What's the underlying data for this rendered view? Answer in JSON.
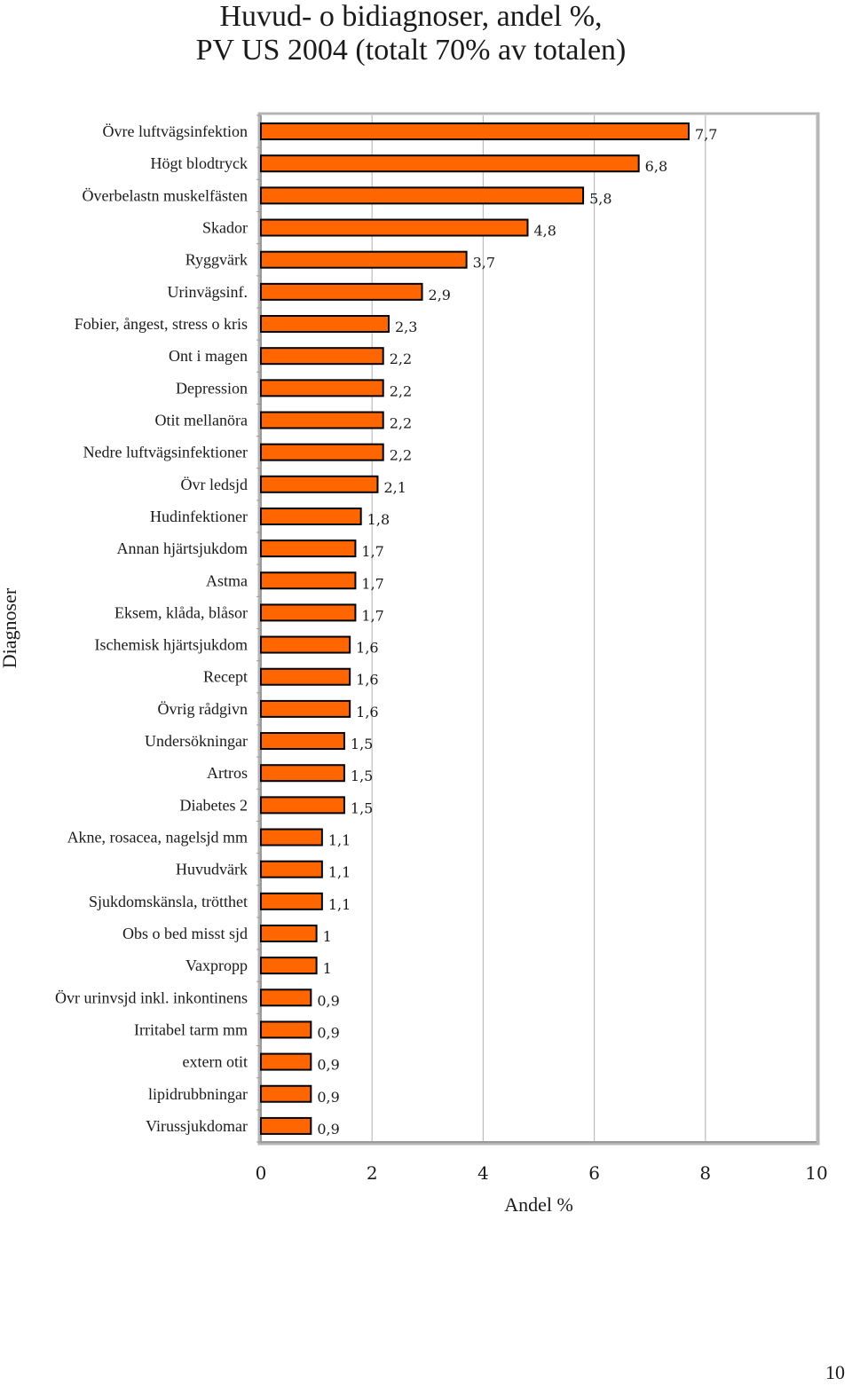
{
  "title_line1": "Huvud- o bidiagnoser, andel %,",
  "title_line2": "PV US 2004 (totalt 70% av totalen)",
  "page_number": "10",
  "chart_data": {
    "type": "bar",
    "orientation": "horizontal",
    "xlabel": "Andel %",
    "ylabel": "Diagnoser",
    "xlim": [
      0,
      10
    ],
    "xticks": [
      "0",
      "2",
      "4",
      "6",
      "8",
      "10"
    ],
    "grid": "vertical",
    "bar_color": "#ff6600",
    "bar_border_color": "#000000",
    "categories": [
      "Övre luftvägsinfektion",
      "Högt blodtryck",
      "Överbelastn muskelfästen",
      "Skador",
      "Ryggvärk",
      "Urinvägsinf.",
      "Fobier, ångest, stress o kris",
      "Ont i magen",
      "Depression",
      "Otit mellanöra",
      "Nedre luftvägsinfektioner",
      "Övr ledsjd",
      "Hudinfektioner",
      "Annan hjärtsjukdom",
      "Astma",
      "Eksem, klåda, blåsor",
      "Ischemisk hjärtsjukdom",
      "Recept",
      "Övrig rådgivn",
      "Undersökningar",
      "Artros",
      "Diabetes 2",
      "Akne, rosacea, nagelsjd mm",
      "Huvudvärk",
      "Sjukdomskänsla, trötthet",
      "Obs o bed misst sjd",
      "Vaxpropp",
      "Övr urinvsjd inkl. inkontinens",
      "Irritabel tarm mm",
      "extern otit",
      "lipidrubbningar",
      "Virussjukdomar"
    ],
    "values": [
      7.7,
      6.8,
      5.8,
      4.8,
      3.7,
      2.9,
      2.3,
      2.2,
      2.2,
      2.2,
      2.2,
      2.1,
      1.8,
      1.7,
      1.7,
      1.7,
      1.6,
      1.6,
      1.6,
      1.5,
      1.5,
      1.5,
      1.1,
      1.1,
      1.1,
      1,
      1,
      0.9,
      0.9,
      0.9,
      0.9,
      0.9
    ],
    "value_labels": [
      "7,7",
      "6,8",
      "5,8",
      "4,8",
      "3,7",
      "2,9",
      "2,3",
      "2,2",
      "2,2",
      "2,2",
      "2,2",
      "2,1",
      "1,8",
      "1,7",
      "1,7",
      "1,7",
      "1,6",
      "1,6",
      "1,6",
      "1,5",
      "1,5",
      "1,5",
      "1,1",
      "1,1",
      "1,1",
      "1",
      "1",
      "0,9",
      "0,9",
      "0,9",
      "0,9",
      "0,9"
    ]
  }
}
